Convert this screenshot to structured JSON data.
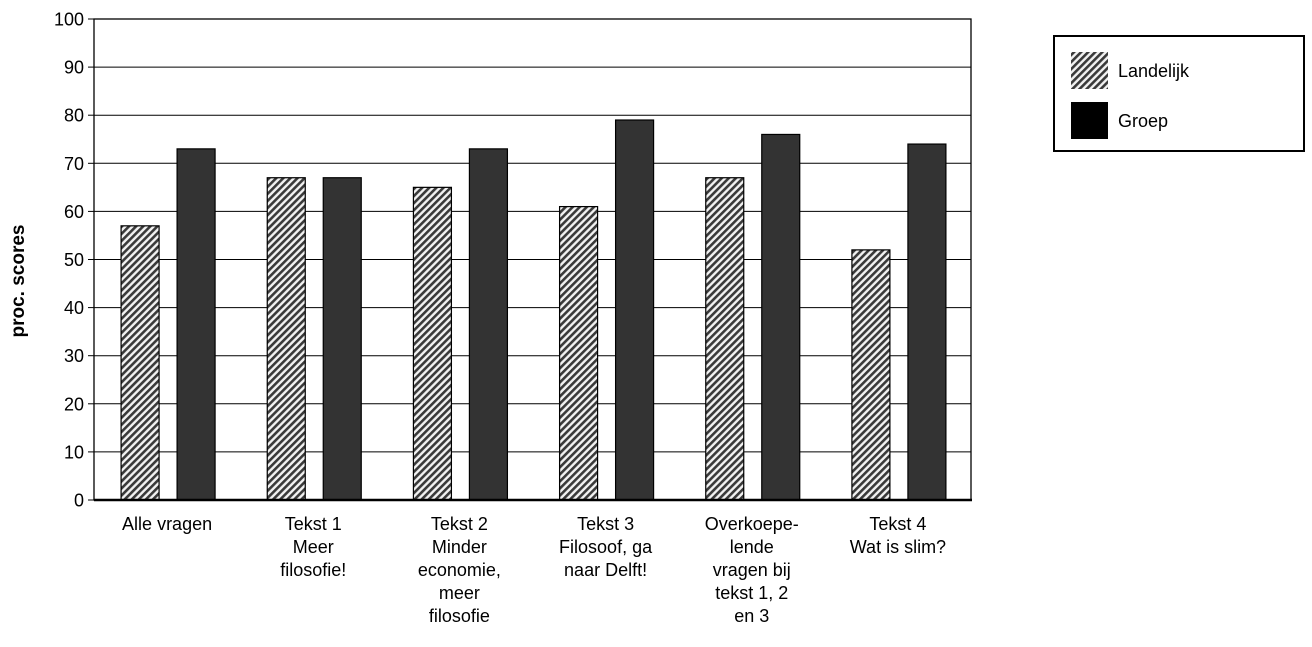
{
  "chart_data": {
    "type": "bar",
    "ylabel": "proc. scores",
    "ylim": [
      0,
      100
    ],
    "yticks": [
      0,
      10,
      20,
      30,
      40,
      50,
      60,
      70,
      80,
      90,
      100
    ],
    "grid": true,
    "legend_position": "top-right",
    "categories": [
      [
        "Alle vragen"
      ],
      [
        "Tekst 1",
        "Meer",
        "filosofie!"
      ],
      [
        "Tekst 2",
        "Minder",
        "economie,",
        "meer",
        "filosofie"
      ],
      [
        "Tekst 3",
        "Filosoof, ga",
        "naar Delft!"
      ],
      [
        "Overkoepe-",
        "lende",
        "vragen bij",
        "tekst 1, 2",
        "en 3"
      ],
      [
        "Tekst 4",
        "Wat is slim?"
      ]
    ],
    "series": [
      {
        "name": "Landelijk",
        "values": [
          57,
          67,
          65,
          61,
          67,
          52
        ],
        "pattern": "diagonal-hatch",
        "color": "#555555"
      },
      {
        "name": "Groep",
        "values": [
          73,
          67,
          73,
          79,
          76,
          74
        ],
        "pattern": "solid",
        "color": "#333333"
      }
    ]
  }
}
